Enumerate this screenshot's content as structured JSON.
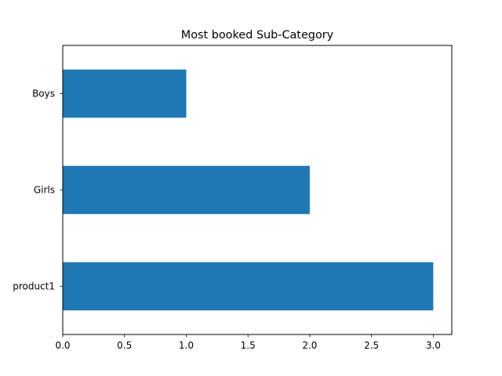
{
  "chart_data": {
    "type": "bar",
    "orientation": "horizontal",
    "title": "Most booked Sub-Category",
    "xlabel": "",
    "ylabel": "",
    "categories": [
      "product1",
      "Girls",
      "Boys"
    ],
    "values": [
      3,
      2,
      1
    ],
    "xlim": [
      0,
      3.15
    ],
    "xticks": [
      "0.0",
      "0.5",
      "1.0",
      "1.5",
      "2.0",
      "2.5",
      "3.0"
    ],
    "grid": false,
    "legend": "none",
    "bar_color": "#1f77b4"
  }
}
